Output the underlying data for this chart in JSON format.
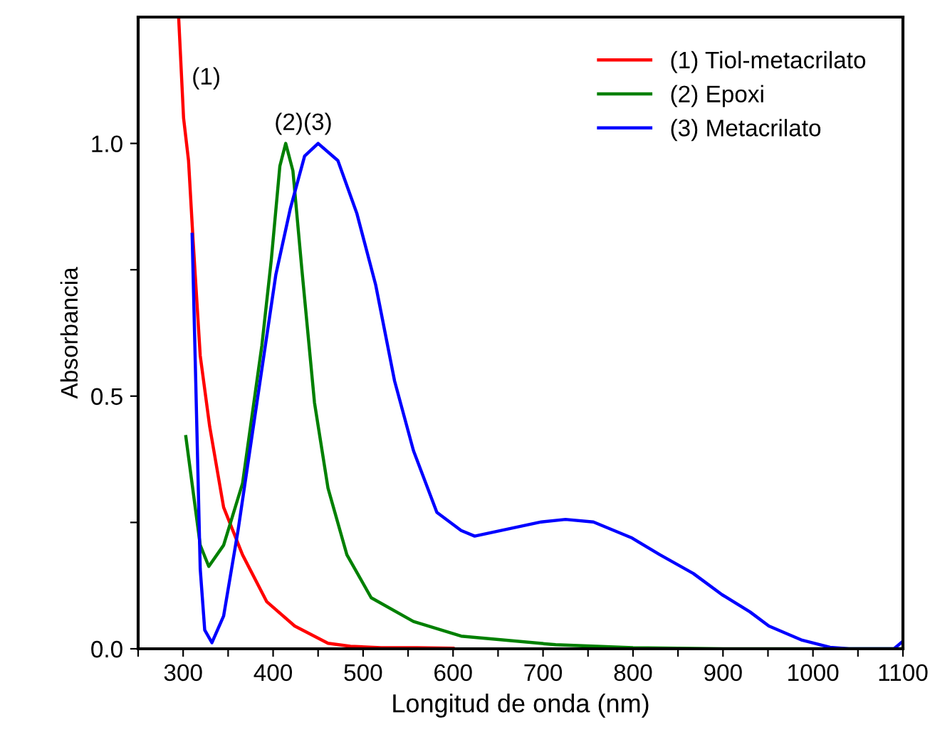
{
  "chart_data": {
    "type": "line",
    "xlabel": "Longitud de onda (nm)",
    "ylabel": "Absorbancia",
    "xlim": [
      250,
      1100
    ],
    "ylim": [
      0,
      1.25
    ],
    "xticks": [
      {
        "value": 250,
        "label": null
      },
      300,
      {
        "value": 350,
        "label": null
      },
      400,
      {
        "value": 450,
        "label": null
      },
      500,
      {
        "value": 550,
        "label": null
      },
      600,
      {
        "value": 650,
        "label": null
      },
      700,
      {
        "value": 750,
        "label": null
      },
      800,
      {
        "value": 850,
        "label": null
      },
      900,
      {
        "value": 950,
        "label": null
      },
      1000,
      {
        "value": 1050,
        "label": null
      },
      1100
    ],
    "yticks": [
      {
        "value": 0,
        "label": "0.0"
      },
      {
        "value": 0.25,
        "label": null
      },
      {
        "value": 0.5,
        "label": "0.5"
      },
      {
        "value": 0.75,
        "label": null
      },
      {
        "value": 1.0,
        "label": "1.0"
      }
    ],
    "grid": false,
    "legend": "top right",
    "marker": "none",
    "line_style": "solid",
    "annotations": [
      "(1)",
      "(2)(3)"
    ],
    "series": [
      {
        "name": "(1) Tiol-metacrilato",
        "color": "#ff0000",
        "x": [
          295,
          300.5,
          306,
          311,
          319,
          329.5,
          345,
          366,
          393,
          424,
          461,
          486,
          520,
          560,
          600
        ],
        "values": [
          1.25,
          1.05,
          0.966,
          0.81,
          0.58,
          0.44,
          0.28,
          0.186,
          0.093,
          0.045,
          0.011,
          0.005,
          0.002,
          0.002,
          0.001
        ]
      },
      {
        "name": "(2) Epoxi",
        "color": "#008000",
        "x": [
          303,
          319,
          328.5,
          345,
          366,
          387.5,
          398,
          407.5,
          414,
          422,
          432,
          446,
          461,
          482,
          509,
          556,
          609,
          714,
          800,
          900,
          1100
        ],
        "values": [
          0.42,
          0.205,
          0.163,
          0.205,
          0.327,
          0.6,
          0.77,
          0.955,
          1.0,
          0.946,
          0.75,
          0.487,
          0.318,
          0.186,
          0.101,
          0.054,
          0.025,
          0.008,
          0.002,
          0.0,
          0.0
        ]
      },
      {
        "name": "(3) Metacrilato",
        "color": "#0000ff",
        "x": [
          310,
          314,
          319,
          324,
          332,
          345,
          361,
          382,
          403,
          419,
          435,
          450,
          472,
          493,
          514,
          535,
          556,
          582,
          609,
          624,
          661,
          698,
          725,
          756,
          798,
          830,
          867,
          899,
          930,
          951,
          988,
          1019,
          1040,
          1090,
          1100
        ],
        "values": [
          0.82,
          0.53,
          0.158,
          0.037,
          0.012,
          0.065,
          0.234,
          0.487,
          0.74,
          0.87,
          0.975,
          1.0,
          0.966,
          0.862,
          0.72,
          0.53,
          0.392,
          0.27,
          0.234,
          0.223,
          0.237,
          0.251,
          0.256,
          0.251,
          0.22,
          0.186,
          0.149,
          0.107,
          0.073,
          0.045,
          0.017,
          0.003,
          0.0,
          0.0,
          0.015
        ]
      }
    ]
  }
}
